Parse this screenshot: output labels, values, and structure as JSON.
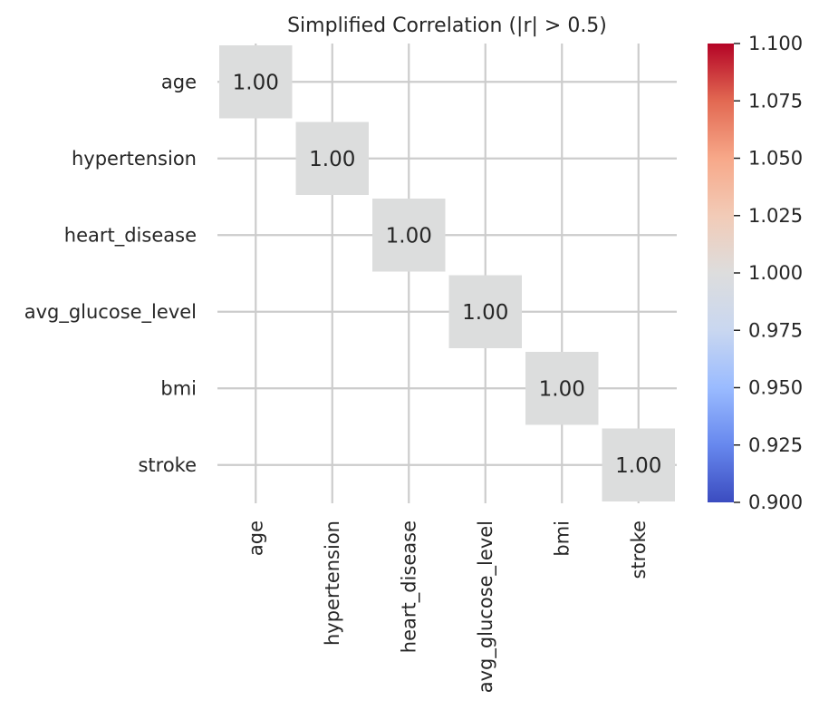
{
  "chart_data": {
    "type": "heatmap",
    "title": "Simplified Correlation (|r| > 0.5)",
    "row_labels": [
      "age",
      "hypertension",
      "heart_disease",
      "avg_glucose_level",
      "bmi",
      "stroke"
    ],
    "col_labels": [
      "age",
      "hypertension",
      "heart_disease",
      "avg_glucose_level",
      "bmi",
      "stroke"
    ],
    "values": [
      [
        1.0,
        null,
        null,
        null,
        null,
        null
      ],
      [
        null,
        1.0,
        null,
        null,
        null,
        null
      ],
      [
        null,
        null,
        1.0,
        null,
        null,
        null
      ],
      [
        null,
        null,
        null,
        1.0,
        null,
        null
      ],
      [
        null,
        null,
        null,
        null,
        1.0,
        null
      ],
      [
        null,
        null,
        null,
        null,
        null,
        1.0
      ]
    ],
    "annotation_format": "0.00",
    "masked_cells": "blank (|r| <= 0.5)",
    "grid": true,
    "colormap": "coolwarm",
    "colorbar": {
      "range": [
        0.9,
        1.1
      ],
      "ticks": [
        0.9,
        0.925,
        0.95,
        0.975,
        1.0,
        1.025,
        1.05,
        1.075,
        1.1
      ],
      "tick_labels": [
        "0.900",
        "0.925",
        "0.950",
        "0.975",
        "1.000",
        "1.025",
        "1.050",
        "1.075",
        "1.100"
      ],
      "position": "right"
    }
  },
  "colors": {
    "cell_fill": "#dcdddd",
    "grid_line": "#cccccc",
    "text": "#262626",
    "background": "#ffffff",
    "colormap_stops": [
      "#3b4cc0",
      "#6788ee",
      "#9abbff",
      "#c9d7f0",
      "#dddddd",
      "#f2cbb7",
      "#f7a889",
      "#e26952",
      "#b40426"
    ]
  }
}
